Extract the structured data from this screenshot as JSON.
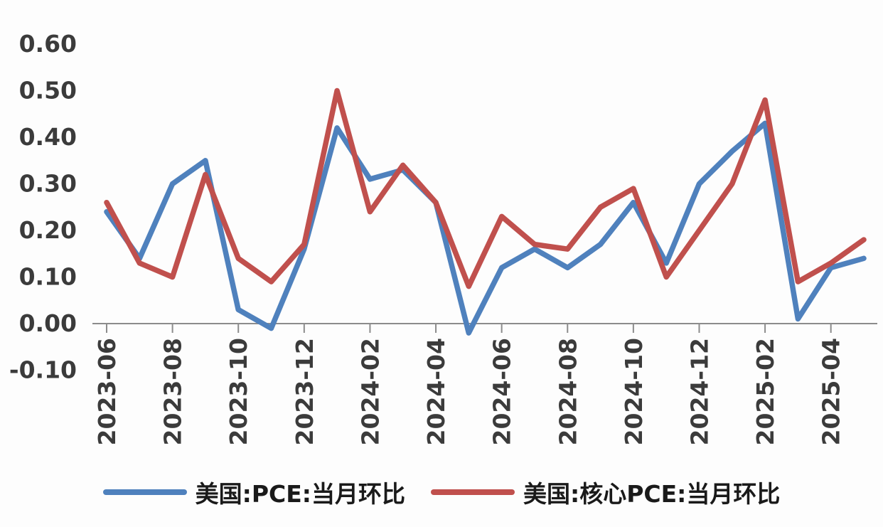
{
  "chart_data": {
    "type": "line",
    "x": [
      "2023-06",
      "2023-07",
      "2023-08",
      "2023-09",
      "2023-10",
      "2023-11",
      "2023-12",
      "2024-01",
      "2024-02",
      "2024-03",
      "2024-04",
      "2024-05",
      "2024-06",
      "2024-07",
      "2024-08",
      "2024-09",
      "2024-10",
      "2024-11",
      "2024-12",
      "2025-01",
      "2025-02",
      "2025-03",
      "2025-04",
      "2025-05"
    ],
    "x_labeled_ticks": [
      "2023-06",
      "2023-08",
      "2023-10",
      "2023-12",
      "2024-02",
      "2024-04",
      "2024-06",
      "2024-08",
      "2024-10",
      "2024-12",
      "2025-02",
      "2025-04"
    ],
    "series": [
      {
        "name": "美国:PCE:当月环比",
        "color": "#4F81BD",
        "values": [
          0.24,
          0.14,
          0.3,
          0.35,
          0.03,
          -0.01,
          0.16,
          0.42,
          0.31,
          0.33,
          0.26,
          -0.02,
          0.12,
          0.16,
          0.12,
          0.17,
          0.26,
          0.13,
          0.3,
          0.37,
          0.43,
          0.01,
          0.12,
          0.14
        ]
      },
      {
        "name": "美国:核心PCE:当月环比",
        "color": "#C0504D",
        "values": [
          0.26,
          0.13,
          0.1,
          0.32,
          0.14,
          0.09,
          0.17,
          0.5,
          0.24,
          0.34,
          0.26,
          0.08,
          0.23,
          0.17,
          0.16,
          0.25,
          0.29,
          0.1,
          0.2,
          0.3,
          0.48,
          0.09,
          0.13,
          0.18
        ]
      }
    ],
    "ylim": [
      -0.1,
      0.6
    ],
    "ytick_labels": [
      "0.60",
      "0.50",
      "0.40",
      "0.30",
      "0.20",
      "0.10",
      "0.00",
      "-0.10"
    ],
    "title": "",
    "xlabel": "",
    "ylabel": "",
    "grid": false,
    "legend_position": "bottom",
    "axis_color": "#8C8C8C",
    "text_color": "#3B3B3B"
  }
}
